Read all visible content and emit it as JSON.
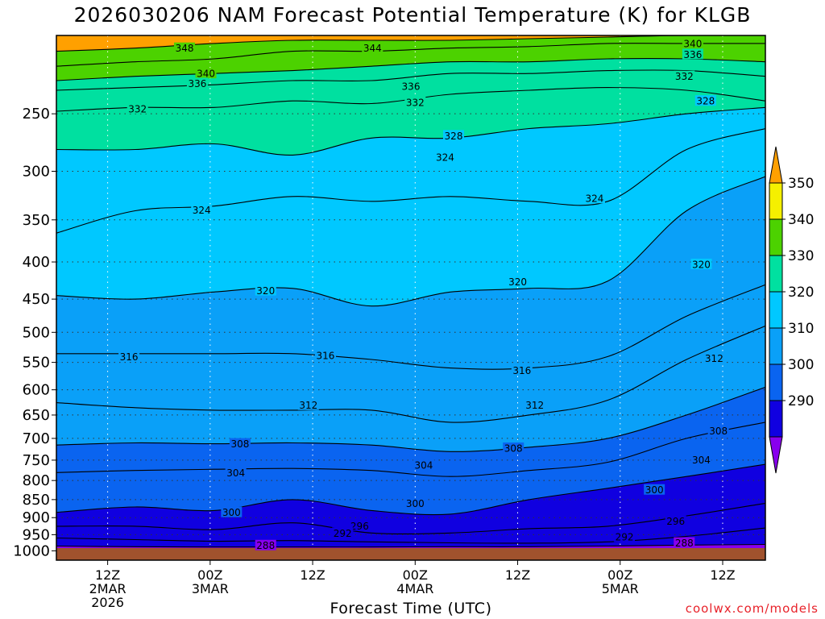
{
  "chart_data": {
    "type": "heatmap",
    "title": "2026030206 NAM Forecast Potential Temperature (K) for KLGB",
    "xlabel": "Forecast Time (UTC)",
    "ylabel": "",
    "y_scale": "log-pressure",
    "y_unit": "hPa",
    "ylim": [
      1030,
      195
    ],
    "y_ticks": [
      250,
      300,
      350,
      400,
      450,
      500,
      550,
      600,
      650,
      700,
      750,
      800,
      850,
      900,
      950,
      1000
    ],
    "xlim": [
      "2026-03-02 06Z",
      "2026-03-05 17Z"
    ],
    "x_ticks": [
      {
        "value": "2026-03-02 12Z",
        "lines": [
          "12Z",
          "2MAR",
          "2026"
        ]
      },
      {
        "value": "2026-03-03 00Z",
        "lines": [
          "00Z",
          "3MAR"
        ]
      },
      {
        "value": "2026-03-03 12Z",
        "lines": [
          "12Z"
        ]
      },
      {
        "value": "2026-03-04 00Z",
        "lines": [
          "00Z",
          "4MAR"
        ]
      },
      {
        "value": "2026-03-04 12Z",
        "lines": [
          "12Z"
        ]
      },
      {
        "value": "2026-03-05 00Z",
        "lines": [
          "00Z",
          "5MAR"
        ]
      },
      {
        "value": "2026-03-05 12Z",
        "lines": [
          "12Z"
        ]
      }
    ],
    "grid": true,
    "colorbar": {
      "placement": "right",
      "levels": [
        290,
        300,
        310,
        320,
        330,
        340,
        350
      ],
      "colors": [
        "#1000e0",
        "#0a64f0",
        "#0aa0f8",
        "#00c8ff",
        "#00e0a0",
        "#4cd200",
        "#f5f000"
      ],
      "under_color": "#8800ee",
      "over_color": "#ffa000"
    },
    "isotherms": [
      {
        "value": 288,
        "p": [
          985,
          987,
          988,
          988,
          988,
          987,
          987,
          985,
          982,
          980
        ]
      },
      {
        "value": 292,
        "p": [
          960,
          965,
          970,
          968,
          972,
          975,
          976,
          972,
          955,
          930
        ]
      },
      {
        "value": 296,
        "p": [
          925,
          925,
          935,
          915,
          945,
          945,
          932,
          925,
          895,
          860
        ]
      },
      {
        "value": 300,
        "p": [
          885,
          870,
          880,
          850,
          880,
          890,
          850,
          820,
          790,
          760
        ]
      },
      {
        "value": 304,
        "p": [
          780,
          775,
          772,
          770,
          775,
          790,
          775,
          755,
          700,
          665
        ]
      },
      {
        "value": 308,
        "p": [
          715,
          710,
          712,
          710,
          715,
          730,
          720,
          700,
          650,
          595
        ]
      },
      {
        "value": 312,
        "p": [
          625,
          635,
          640,
          640,
          640,
          665,
          650,
          620,
          545,
          490
        ]
      },
      {
        "value": 316,
        "p": [
          535,
          535,
          535,
          535,
          545,
          560,
          560,
          540,
          475,
          430
        ]
      },
      {
        "value": 320,
        "p": [
          445,
          450,
          440,
          435,
          460,
          440,
          435,
          425,
          340,
          305
        ]
      },
      {
        "value": 324,
        "p": [
          365,
          340,
          335,
          325,
          330,
          325,
          330,
          330,
          280,
          262
        ]
      },
      {
        "value": 328,
        "p": [
          280,
          280,
          275,
          285,
          270,
          270,
          262,
          258,
          250,
          245
        ]
      },
      {
        "value": 332,
        "p": [
          248,
          245,
          245,
          240,
          242,
          235,
          232,
          230,
          232,
          240
        ]
      },
      {
        "value": 336,
        "p": [
          232,
          230,
          228,
          225,
          225,
          220,
          220,
          218,
          218,
          222
        ]
      },
      {
        "value": 340,
        "p": [
          225,
          222,
          220,
          218,
          215,
          212,
          212,
          210,
          210,
          212
        ]
      },
      {
        "value": 344,
        "p": [
          215,
          212,
          210,
          205,
          205,
          203,
          202,
          200,
          200,
          200
        ]
      },
      {
        "value": 348,
        "p": [
          205,
          203,
          200,
          198,
          198,
          198,
          197,
          196,
          195,
          195
        ]
      }
    ],
    "isotherm_labels": [
      {
        "text": "348",
        "t": 9.0,
        "p": 203
      },
      {
        "text": "344",
        "t": 31.0,
        "p": 203
      },
      {
        "text": "340",
        "t": 11.5,
        "p": 220
      },
      {
        "text": "340",
        "t": 68.5,
        "p": 200
      },
      {
        "text": "336",
        "t": 10.5,
        "p": 227
      },
      {
        "text": "336",
        "t": 35.5,
        "p": 229
      },
      {
        "text": "336",
        "t": 68.5,
        "p": 207
      },
      {
        "text": "332",
        "t": 3.5,
        "p": 246
      },
      {
        "text": "332",
        "t": 36.0,
        "p": 241
      },
      {
        "text": "332",
        "t": 67.5,
        "p": 222
      },
      {
        "text": "328",
        "t": 40.5,
        "p": 268
      },
      {
        "text": "328",
        "t": 70.0,
        "p": 240
      },
      {
        "text": "324",
        "t": 11.0,
        "p": 339
      },
      {
        "text": "324",
        "t": 39.5,
        "p": 287
      },
      {
        "text": "324",
        "t": 57.0,
        "p": 327
      },
      {
        "text": "320",
        "t": 18.5,
        "p": 438
      },
      {
        "text": "320",
        "t": 48.0,
        "p": 426
      },
      {
        "text": "320",
        "t": 69.5,
        "p": 403
      },
      {
        "text": "316",
        "t": 2.5,
        "p": 540
      },
      {
        "text": "316",
        "t": 25.5,
        "p": 538
      },
      {
        "text": "316",
        "t": 48.5,
        "p": 564
      },
      {
        "text": "312",
        "t": 23.5,
        "p": 630
      },
      {
        "text": "312",
        "t": 50.0,
        "p": 630
      },
      {
        "text": "312",
        "t": 71.0,
        "p": 543
      },
      {
        "text": "308",
        "t": 15.5,
        "p": 712
      },
      {
        "text": "308",
        "t": 47.5,
        "p": 722
      },
      {
        "text": "308",
        "t": 71.5,
        "p": 683
      },
      {
        "text": "304",
        "t": 15.0,
        "p": 780
      },
      {
        "text": "304",
        "t": 37.0,
        "p": 762
      },
      {
        "text": "304",
        "t": 69.5,
        "p": 749
      },
      {
        "text": "300",
        "t": 14.5,
        "p": 885
      },
      {
        "text": "300",
        "t": 36.0,
        "p": 860
      },
      {
        "text": "300",
        "t": 64.0,
        "p": 824
      },
      {
        "text": "296",
        "t": 29.5,
        "p": 924
      },
      {
        "text": "296",
        "t": 66.5,
        "p": 910
      },
      {
        "text": "292",
        "t": 27.5,
        "p": 945
      },
      {
        "text": "292",
        "t": 60.5,
        "p": 957
      },
      {
        "text": "288",
        "t": 18.5,
        "p": 983
      },
      {
        "text": "288",
        "t": 67.5,
        "p": 975
      }
    ]
  },
  "branding": {
    "credit": "coolwx.com/models"
  }
}
